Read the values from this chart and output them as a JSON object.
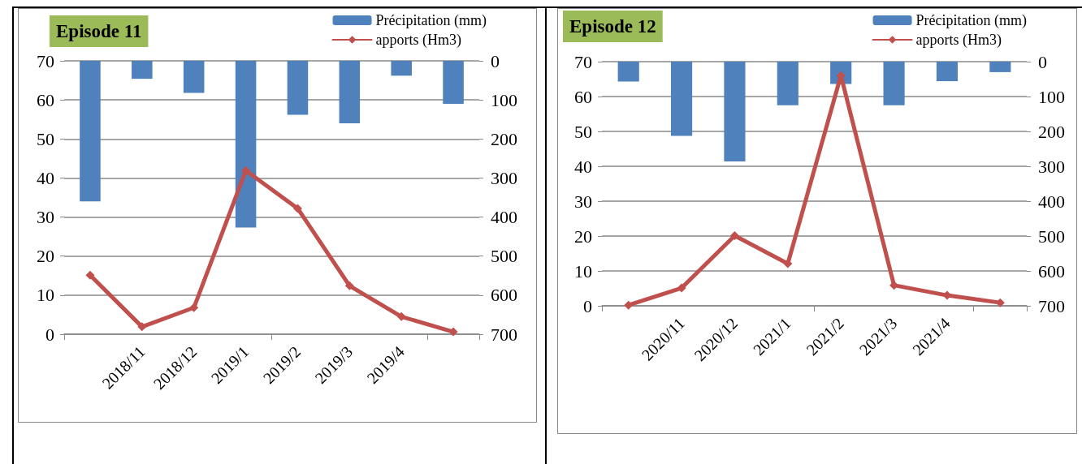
{
  "chart_data": [
    {
      "type": "bar",
      "title": "Episode 11",
      "categories": [
        null,
        "2018/11",
        "2018/12",
        "2019/1",
        "2019/2",
        "2019/3",
        "2019/4",
        null
      ],
      "series": [
        {
          "name": "Précipitation (mm)",
          "axis": "y2",
          "color": "#4f81bd",
          "values": [
            360,
            46,
            82,
            427,
            138,
            160,
            38,
            110
          ]
        },
        {
          "name": "apports (Hm3)",
          "type": "line",
          "color": "#c0504d",
          "values": [
            15.1,
            1.9,
            6.8,
            41.9,
            32.2,
            12.4,
            4.5,
            0.6
          ]
        }
      ],
      "ylim": [
        0,
        70
      ],
      "yticks": [
        0,
        10,
        20,
        30,
        40,
        50,
        60,
        70
      ],
      "y2lim": [
        700,
        0
      ],
      "y2ticks": [
        0,
        100,
        200,
        300,
        400,
        500,
        600,
        700
      ],
      "grid": "y",
      "legend": "top right",
      "marker": "diamond",
      "line_style": "solid"
    },
    {
      "type": "bar",
      "title": "Episode 12",
      "categories": [
        null,
        "2020/11",
        "2020/12",
        "2021/1",
        "2021/2",
        "2021/3",
        "2021/4",
        null
      ],
      "series": [
        {
          "name": "Précipitation (mm)",
          "axis": "y2",
          "color": "#4f81bd",
          "values": [
            57,
            213,
            286,
            125,
            64,
            125,
            56,
            30
          ]
        },
        {
          "name": "apports (Hm3)",
          "type": "line",
          "color": "#c0504d",
          "values": [
            0.2,
            5.1,
            20.1,
            12.1,
            66,
            5.9,
            3,
            0.9
          ]
        }
      ],
      "ylim": [
        0,
        70
      ],
      "yticks": [
        0,
        10,
        20,
        30,
        40,
        50,
        60,
        70
      ],
      "y2lim": [
        700,
        0
      ],
      "y2ticks": [
        0,
        100,
        200,
        300,
        400,
        500,
        600,
        700
      ],
      "grid": "y",
      "legend": "top right",
      "marker": "diamond",
      "line_style": "solid"
    }
  ]
}
